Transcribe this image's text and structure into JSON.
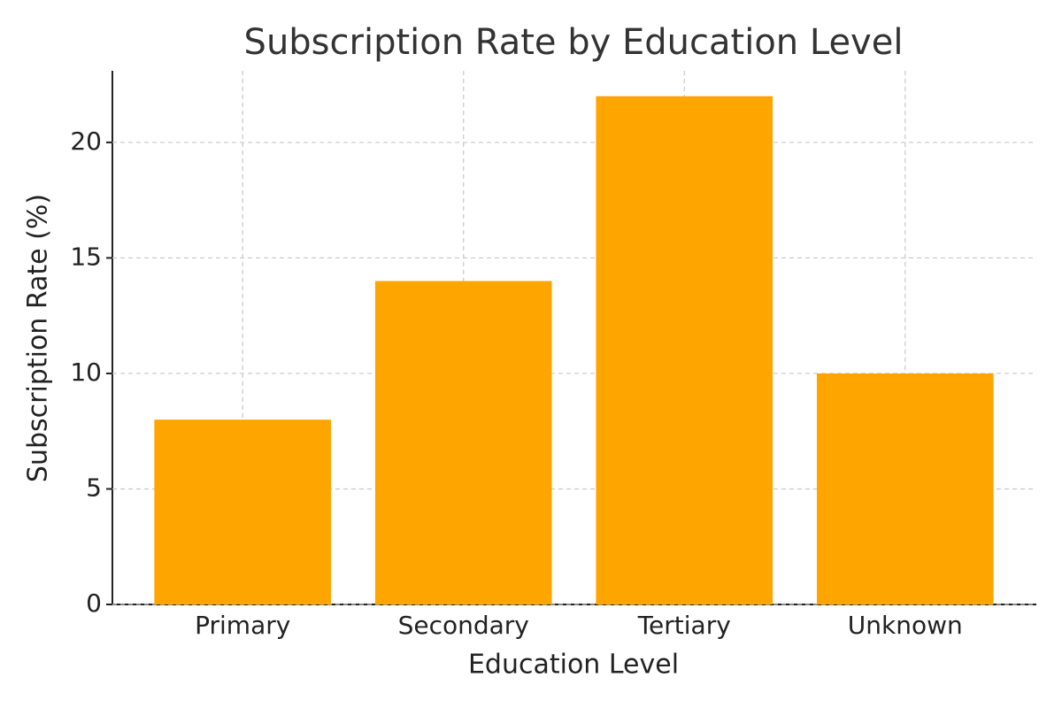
{
  "chart_data": {
    "type": "bar",
    "title": "Subscription Rate by Education Level",
    "x_label": "Education Level",
    "y_label": "Subscription Rate (%)",
    "categories": [
      "Primary",
      "Secondary",
      "Tertiary",
      "Unknown"
    ],
    "values": [
      8,
      14,
      22,
      10
    ],
    "color": "#ffa500",
    "ylim": [
      0,
      23.1
    ],
    "yticks": [
      0,
      5,
      10,
      15,
      20
    ],
    "grid": true
  }
}
